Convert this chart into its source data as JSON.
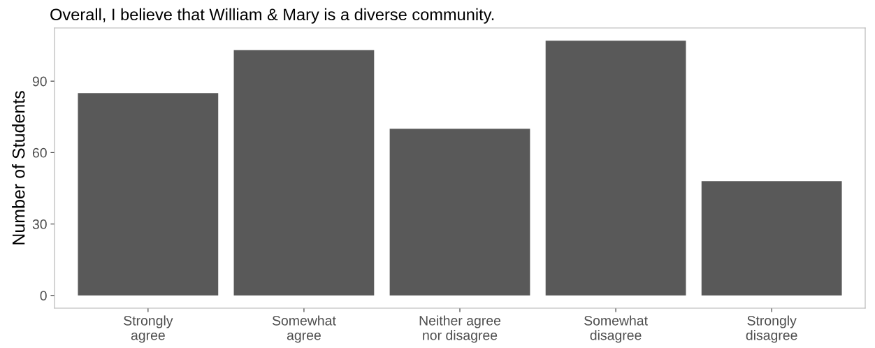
{
  "chart_data": {
    "type": "bar",
    "title": "Overall, I believe that William & Mary is a diverse community.",
    "ylabel": "Number of Students",
    "categories": [
      "Strongly\nagree",
      "Somewhat\nagree",
      "Neither agree\nnor disagree",
      "Somewhat\ndisagree",
      "Strongly\ndisagree"
    ],
    "values": [
      85,
      103,
      70,
      107,
      48
    ],
    "color": "#595959",
    "ylim": [
      -5.35,
      112.35
    ],
    "yticks": [
      0,
      30,
      60,
      90
    ],
    "grid": false
  }
}
